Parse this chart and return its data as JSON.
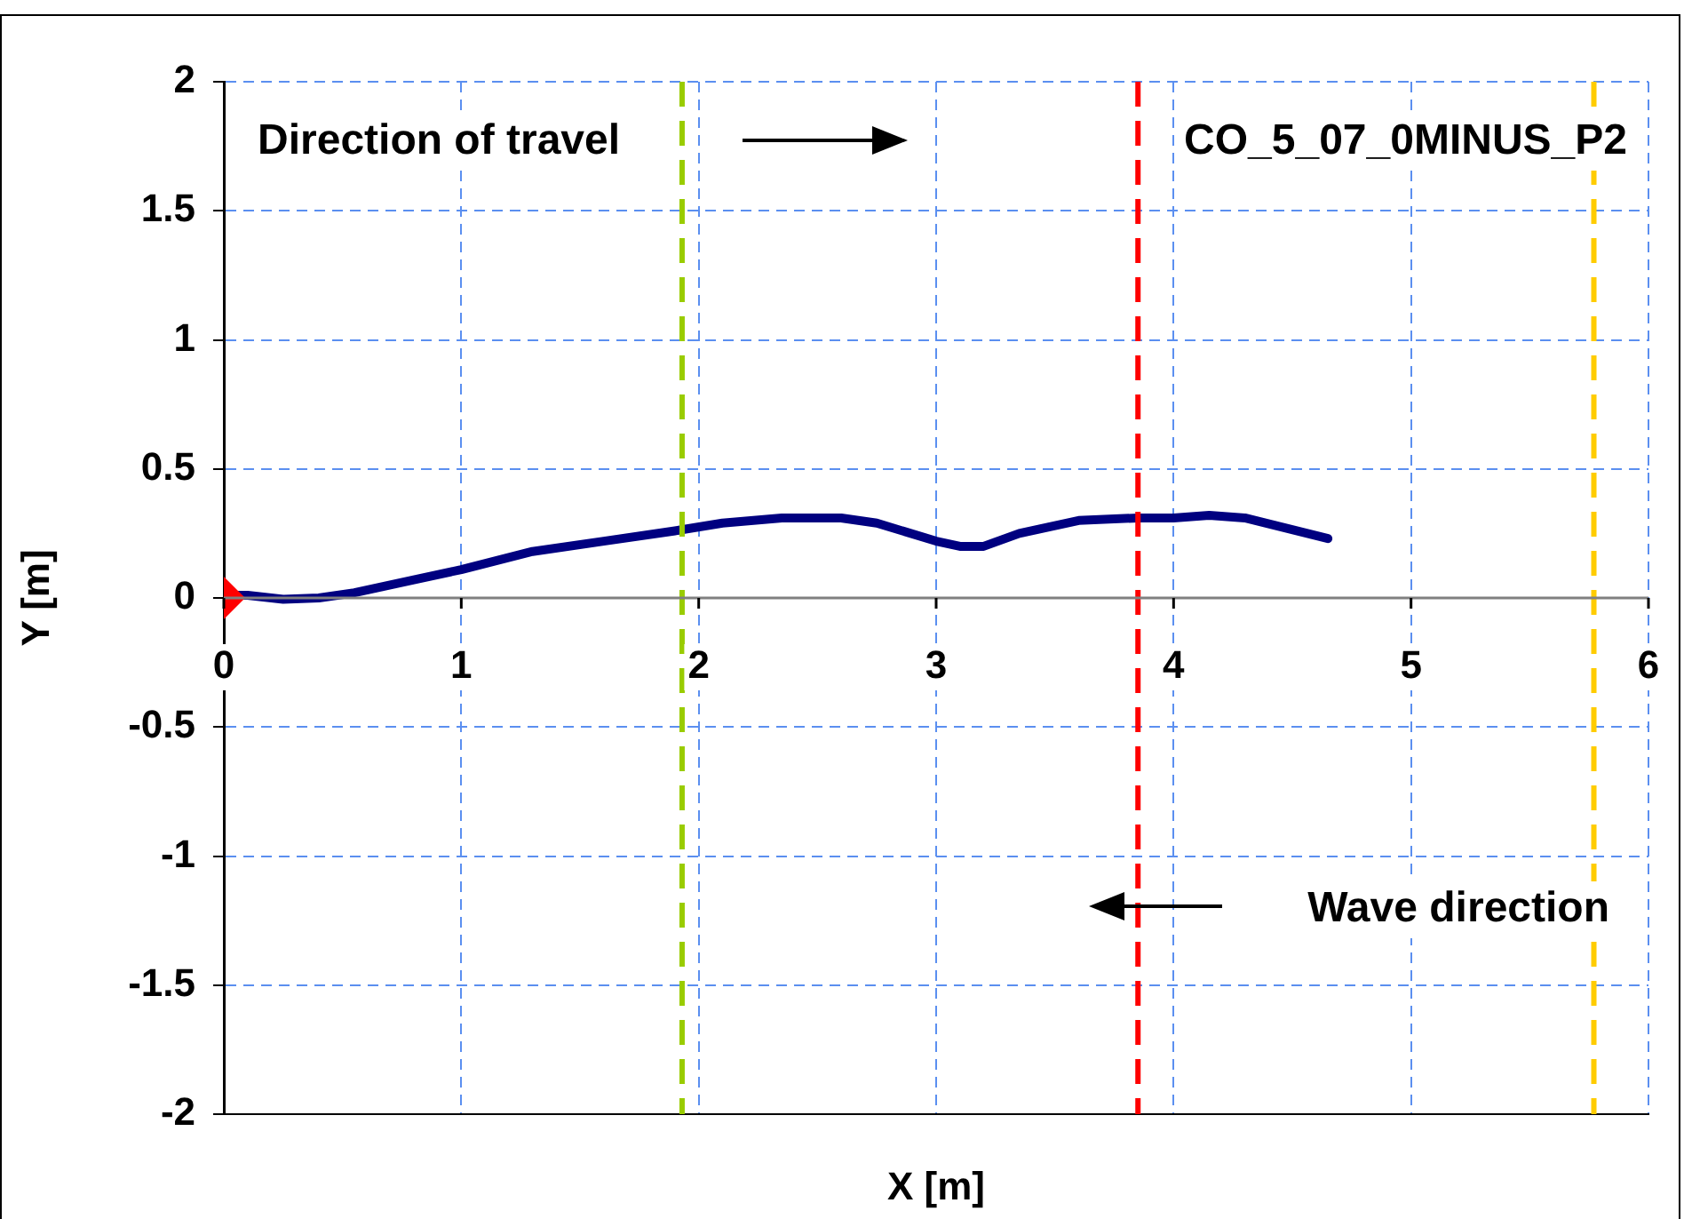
{
  "chart_data": {
    "type": "line",
    "xlabel": "X [m]",
    "ylabel": "Y [m]",
    "xlim": [
      0,
      6
    ],
    "xticks": [
      0,
      1,
      2,
      3,
      4,
      5,
      6
    ],
    "ylim": [
      -2,
      2
    ],
    "yticks": [
      -2,
      -1.5,
      -1,
      -0.5,
      0,
      0.5,
      1,
      1.5,
      2
    ],
    "grid": true,
    "legend": false,
    "marker": "none",
    "line_style": "solid",
    "series": [
      {
        "color": "#000080",
        "x": [
          0.05,
          0.1,
          0.25,
          0.4,
          0.55,
          0.8,
          1.0,
          1.3,
          1.6,
          1.9,
          2.1,
          2.35,
          2.6,
          2.75,
          3.0,
          3.1,
          3.2,
          3.35,
          3.6,
          3.85,
          4.0,
          4.15,
          4.3,
          4.65
        ],
        "values": [
          0.01,
          0.01,
          -0.005,
          0.0,
          0.02,
          0.07,
          0.11,
          0.18,
          0.22,
          0.26,
          0.29,
          0.31,
          0.31,
          0.29,
          0.22,
          0.2,
          0.2,
          0.25,
          0.3,
          0.31,
          0.31,
          0.32,
          0.31,
          0.23
        ]
      },
      {
        "type": "scatter",
        "marker": "diamond",
        "color": "#ff0000",
        "x": [
          0
        ],
        "values": [
          0
        ]
      }
    ],
    "ref_lines": [
      {
        "axis": "x",
        "value": 1.93,
        "color": "#99cc00",
        "line_style": "dashed"
      },
      {
        "axis": "x",
        "value": 3.85,
        "color": "#ff0000",
        "line_style": "dashed"
      },
      {
        "axis": "x",
        "value": 5.77,
        "color": "#ffcc00",
        "line_style": "dashed"
      }
    ],
    "annotations": [
      "Direction of travel",
      "CO_5_07_0MINUS_P2",
      "Wave direction"
    ]
  }
}
